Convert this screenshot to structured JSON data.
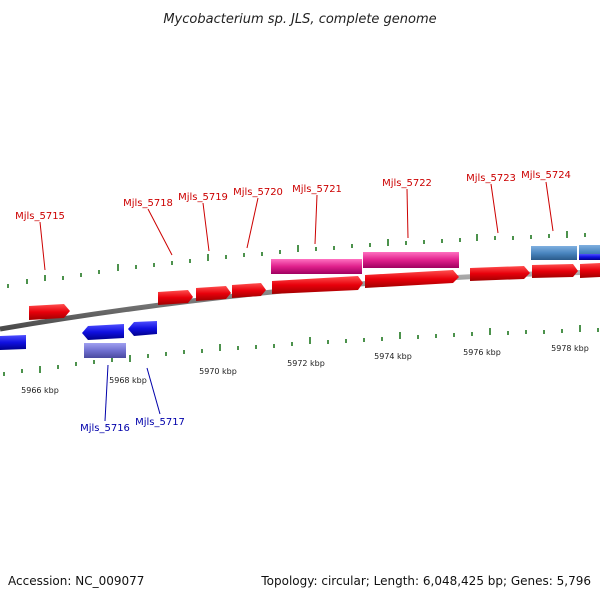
{
  "header": {
    "title": "Mycobacterium sp. JLS, complete genome"
  },
  "footer": {
    "accession": "Accession: NC_009077",
    "info": "Topology: circular; Length: 6,048,425 bp; Genes: 5,796"
  },
  "axis": {
    "tick_labels": [
      "5966 kbp",
      "5968 kbp",
      "5970 kbp",
      "5972 kbp",
      "5974 kbp",
      "5976 kbp",
      "5978 kbp"
    ]
  },
  "genes": [
    {
      "name": "Mjls_5715",
      "strand": "+"
    },
    {
      "name": "Mjls_5716",
      "strand": "-"
    },
    {
      "name": "Mjls_5717",
      "strand": "-"
    },
    {
      "name": "Mjls_5718",
      "strand": "+"
    },
    {
      "name": "Mjls_5719",
      "strand": "+"
    },
    {
      "name": "Mjls_5720",
      "strand": "+"
    },
    {
      "name": "Mjls_5721",
      "strand": "+"
    },
    {
      "name": "Mjls_5722",
      "strand": "+"
    },
    {
      "name": "Mjls_5723",
      "strand": "+"
    },
    {
      "name": "Mjls_5724",
      "strand": "+"
    }
  ],
  "colors": {
    "forward_cds": "#e8000b",
    "reverse_cds": "#1010e0",
    "forward_feature": "#e0208c",
    "reverse_feature": "#7070d0",
    "rna_feature": "#4a86c0",
    "tick": "#006400",
    "backbone": "#7a7a7a",
    "label_forward": "#cc0000",
    "label_reverse": "#0000aa"
  }
}
